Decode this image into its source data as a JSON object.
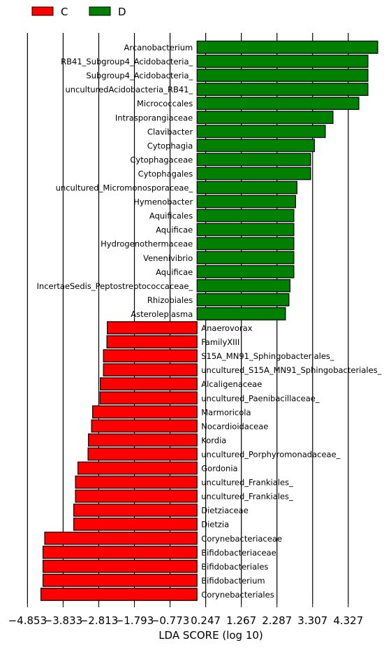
{
  "chart_data": {
    "type": "bar",
    "orientation": "horizontal",
    "xlabel": "LDA SCORE (log 10)",
    "ticks": [
      -4.853,
      -3.833,
      -2.813,
      -1.793,
      -0.773,
      0.247,
      1.267,
      2.287,
      3.307,
      4.327
    ],
    "tick_labels": [
      "−4.853",
      "−3.833",
      "−2.813",
      "−1.793",
      "−0.773",
      "0.247",
      "1.267",
      "2.287",
      "3.307",
      "4.327"
    ],
    "xlim": [
      -5.36,
      5.25
    ],
    "grid": "vertical lines at ticks",
    "legend": {
      "placement": "top-left",
      "entries": [
        {
          "label": "C",
          "color": "#ff0000"
        },
        {
          "label": "D",
          "color": "#008000"
        }
      ]
    },
    "colors": {
      "C": "#ff0000",
      "D": "#008000"
    },
    "categories": [
      "Arcanobacterium",
      "RB41_Subgroup4_Acidobacteria_",
      "Subgroup4_Acidobacteria_",
      "unculturedAcidobacteria_RB41_",
      "Micrococcales",
      "Intrasporangiaceae",
      "Clavibacter",
      "Cytophagia",
      "Cytophagaceae",
      "Cytophagales",
      "uncultured_Micromonosporaceae_",
      "Hymenobacter",
      "Aquificales",
      "Aquificae",
      "Hydrogenothermaceae",
      "Venenivibrio",
      "Aquificae",
      "IncertaeSedis_Peptostreptococcaceae_",
      "Rhizobiales",
      "Asteroleplasma",
      "Anaerovorax",
      "FamilyXIII",
      "S15A_MN91_Sphingobacteriales_",
      "uncultured_S15A_MN91_Sphingobacteriales_",
      "Alcaligenaceae",
      "uncultured_Paenibacillaceae_",
      "Marmoricola",
      "Nocardioidaceae",
      "Kordia",
      "uncultured_Porphyromonadaceae_",
      "Gordonia",
      "uncultured_Frankiales_",
      "uncultured_Frankiales_",
      "Dietziaceae",
      "Dietzia",
      "Corynebacteriaceae",
      "Bifidobacteriaceae",
      "Bifidobacteriales",
      "Bifidobacterium",
      "Corynebacteriales"
    ],
    "groups": [
      "D",
      "D",
      "D",
      "D",
      "D",
      "D",
      "D",
      "D",
      "D",
      "D",
      "D",
      "D",
      "D",
      "D",
      "D",
      "D",
      "D",
      "D",
      "D",
      "D",
      "C",
      "C",
      "C",
      "C",
      "C",
      "C",
      "C",
      "C",
      "C",
      "C",
      "C",
      "C",
      "C",
      "C",
      "C",
      "C",
      "C",
      "C",
      "C",
      "C"
    ],
    "values": [
      5.17,
      4.89,
      4.89,
      4.89,
      4.63,
      3.89,
      3.67,
      3.36,
      3.25,
      3.25,
      2.86,
      2.82,
      2.77,
      2.77,
      2.77,
      2.77,
      2.77,
      2.66,
      2.63,
      2.53,
      -2.57,
      -2.58,
      -2.68,
      -2.68,
      -2.77,
      -2.78,
      -2.99,
      -3.02,
      -3.11,
      -3.12,
      -3.41,
      -3.48,
      -3.48,
      -3.53,
      -3.53,
      -4.36,
      -4.41,
      -4.41,
      -4.41,
      -4.47
    ]
  }
}
